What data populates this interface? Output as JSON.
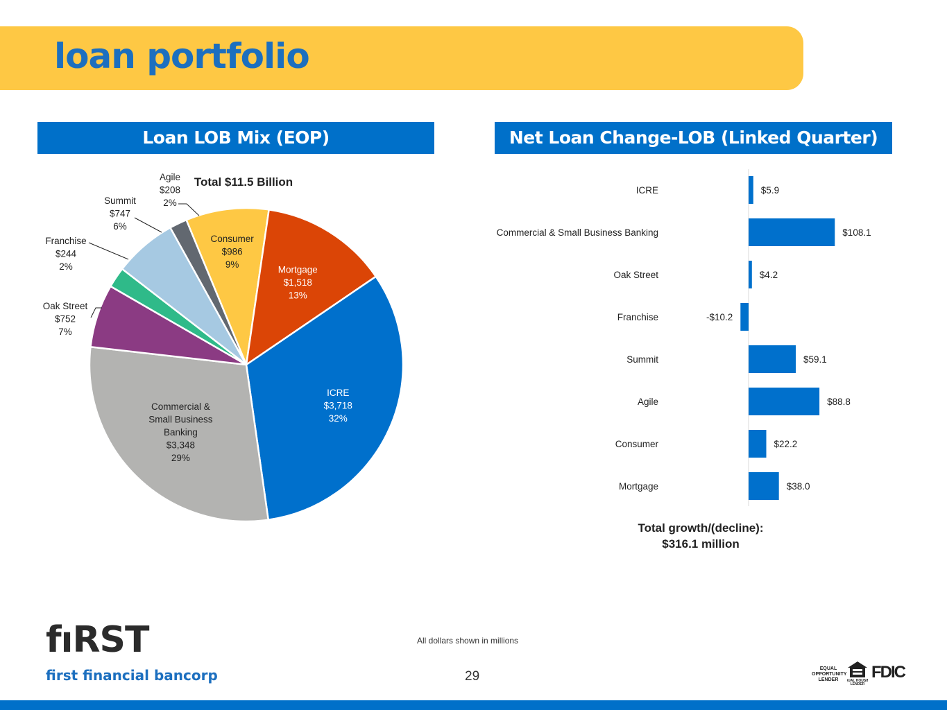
{
  "page": {
    "title": "loan portfolio",
    "footnote": "All dollars shown in millions",
    "page_number": "29",
    "logo": {
      "mark": "fıRST",
      "subtitle": "first financial bancorp"
    },
    "badges": {
      "equal_opportunity": "EQUAL OPPORTUNITY LENDER",
      "equal_housing": "EQUAL HOUSING LENDER",
      "fdic": "FDIC"
    }
  },
  "left_panel": {
    "heading": "Loan LOB Mix (EOP)",
    "total": "Total $11.5 Billion"
  },
  "right_panel": {
    "heading": "Net Loan Change-LOB (Linked Quarter)",
    "total_line1": "Total growth/(decline):",
    "total_line2": "$316.1 million"
  },
  "chart_data": [
    {
      "type": "pie",
      "title": "Total $11.5 Billion",
      "slices": [
        {
          "name": "Consumer",
          "value": 986,
          "value_label": "$986",
          "percent": "9%",
          "color": "#fec844",
          "label_color": "#222222"
        },
        {
          "name": "Mortgage",
          "value": 1518,
          "value_label": "$1,518",
          "percent": "13%",
          "color": "#db4506",
          "label_color": "#ffffff"
        },
        {
          "name": "ICRE",
          "value": 3718,
          "value_label": "$3,718",
          "percent": "32%",
          "color": "#0070cc",
          "label_color": "#ffffff"
        },
        {
          "name": "Commercial & Small Business Banking",
          "label_lines": [
            "Commercial &",
            "Small Business",
            "Banking"
          ],
          "value": 3348,
          "value_label": "$3,348",
          "percent": "29%",
          "color": "#b3b3b1",
          "label_color": "#222222"
        },
        {
          "name": "Oak Street",
          "value": 752,
          "value_label": "$752",
          "percent": "7%",
          "color": "#8b3b83",
          "label_color": "#222222"
        },
        {
          "name": "Franchise",
          "value": 244,
          "value_label": "$244",
          "percent": "2%",
          "color": "#2fba89",
          "label_color": "#222222"
        },
        {
          "name": "Summit",
          "value": 747,
          "value_label": "$747",
          "percent": "6%",
          "color": "#a6c9e2",
          "label_color": "#222222"
        },
        {
          "name": "Agile",
          "value": 208,
          "value_label": "$208",
          "percent": "2%",
          "color": "#626870",
          "label_color": "#222222"
        }
      ]
    },
    {
      "type": "bar",
      "orientation": "horizontal",
      "categories": [
        "ICRE",
        "Commercial & Small Business Banking",
        "Oak Street",
        "Franchise",
        "Summit",
        "Agile",
        "Consumer",
        "Mortgage"
      ],
      "values": [
        5.9,
        108.1,
        4.2,
        -10.2,
        59.1,
        88.8,
        22.2,
        38.0
      ],
      "value_labels": [
        "$5.9",
        "$108.1",
        "$4.2",
        "-$10.2",
        "$59.1",
        "$88.8",
        "$22.2",
        "$38.0"
      ],
      "color": "#0070cc"
    }
  ]
}
